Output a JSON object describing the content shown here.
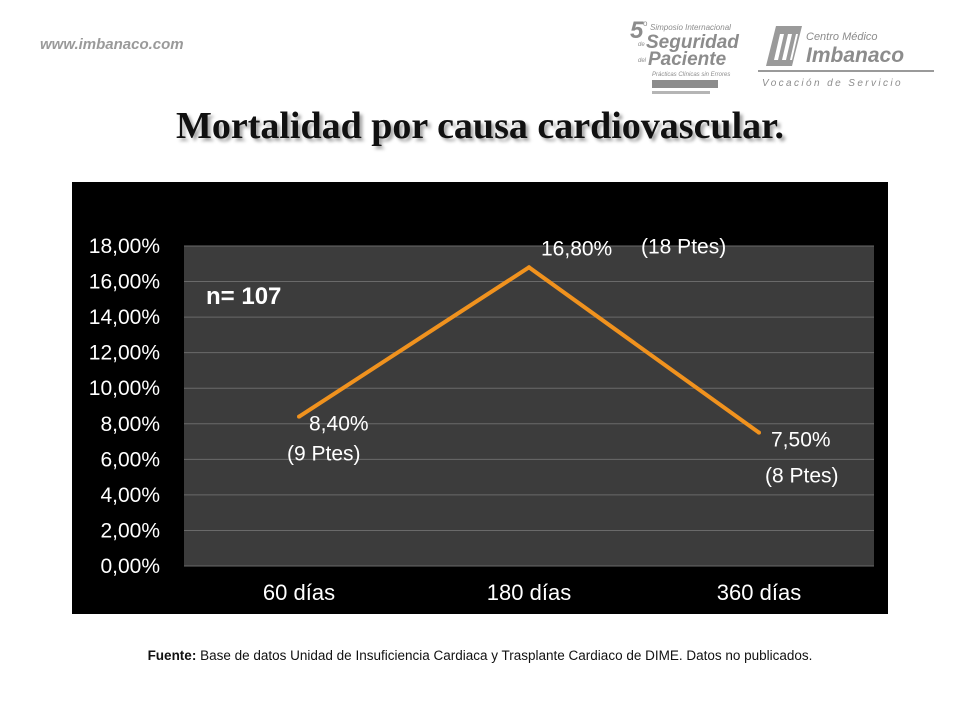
{
  "header": {
    "site_url": "www.imbanaco.com",
    "symposium_logo": {
      "number": "5",
      "superscript": "o",
      "line1": "Simposio Internacional",
      "line2": "de",
      "line3": "Seguridad",
      "line4": "del",
      "line5": "Paciente",
      "line6": "Prácticas Clínicas sin Errores"
    },
    "imbanaco_logo": {
      "line1": "Centro Médico",
      "line2": "Imbanaco",
      "tagline": "Vocación de Servicio"
    }
  },
  "title": "Mortalidad por causa cardiovascular.",
  "colors": {
    "panel_background": "#000000",
    "plot_background": "#3c3c3c",
    "gridline": "#6a6a6a",
    "line": "#f0921e",
    "text": "#ffffff"
  },
  "chart_data": {
    "type": "line",
    "categories": [
      "60 días",
      "180 días",
      "360 días"
    ],
    "series": [
      {
        "values": [
          8.4,
          16.8,
          7.5
        ],
        "color": "#f0921e"
      }
    ],
    "yticks": [
      "0,00%",
      "2,00%",
      "4,00%",
      "6,00%",
      "8,00%",
      "10,00%",
      "12,00%",
      "14,00%",
      "16,00%",
      "18,00%"
    ],
    "ylim": [
      0,
      18
    ],
    "grid": true,
    "data_labels": [
      "8,40%",
      "16,80%",
      "7,50%"
    ],
    "patient_counts": [
      "(9 Ptes)",
      "(18 Ptes)",
      "(8 Ptes)"
    ],
    "annotation": "n= 107"
  },
  "footer": {
    "source_label": "Fuente:",
    "source_text": "Base de datos Unidad de Insuficiencia Cardiaca y Trasplante Cardiaco de DIME. Datos no publicados."
  }
}
